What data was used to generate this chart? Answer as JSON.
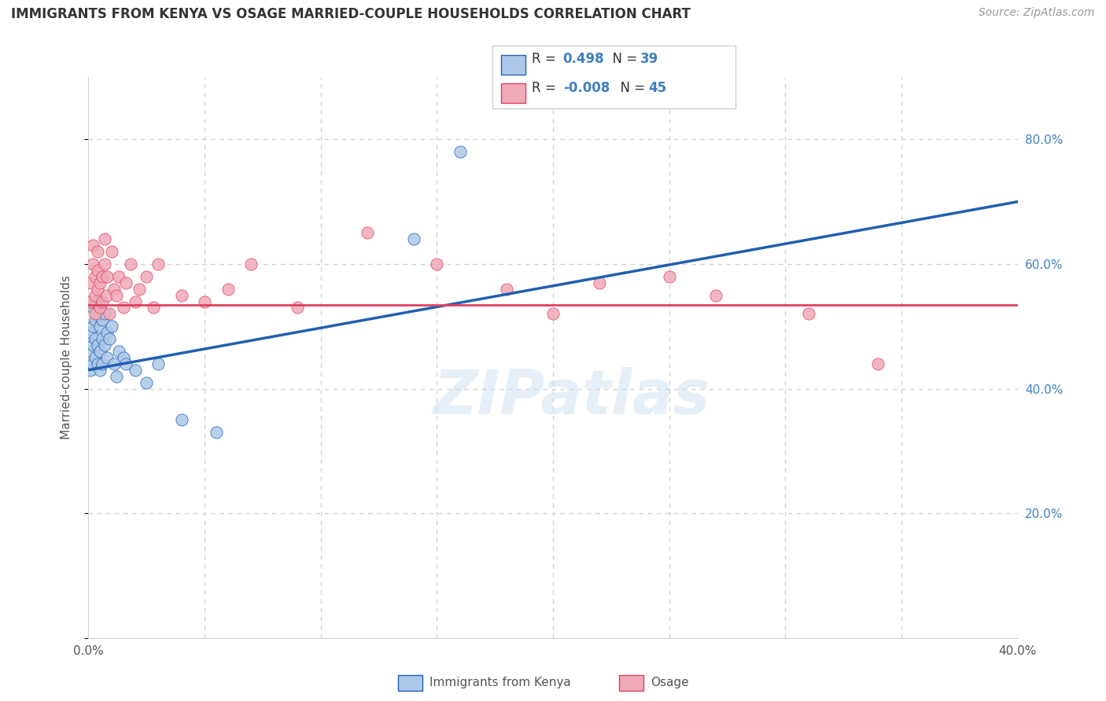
{
  "title": "IMMIGRANTS FROM KENYA VS OSAGE MARRIED-COUPLE HOUSEHOLDS CORRELATION CHART",
  "source": "Source: ZipAtlas.com",
  "ylabel": "Married-couple Households",
  "xlim": [
    0.0,
    0.4
  ],
  "ylim": [
    0.0,
    0.9
  ],
  "yticks": [
    0.0,
    0.2,
    0.4,
    0.6,
    0.8
  ],
  "yticklabels": [
    "",
    "20.0%",
    "40.0%",
    "60.0%",
    "80.0%"
  ],
  "xtick_positions": [
    0.0,
    0.05,
    0.1,
    0.15,
    0.2,
    0.25,
    0.3,
    0.35,
    0.4
  ],
  "xtick_labels": [
    "0.0%",
    "",
    "",
    "",
    "",
    "",
    "",
    "",
    "40.0%"
  ],
  "watermark": "ZIPatlas",
  "color_kenya": "#adc8e8",
  "color_osage": "#f0aab8",
  "color_line_kenya": "#2060b0",
  "color_line_osage": "#e04060",
  "color_line_dashed": "#90b8d8",
  "grid_color": "#d8d0d0",
  "background_color": "#ffffff",
  "kenya_line_x0": 0.0,
  "kenya_line_y0": 0.43,
  "kenya_line_x1": 0.4,
  "kenya_line_y1": 0.7,
  "osage_line_y": 0.535,
  "kenya_x": [
    0.001,
    0.001,
    0.001,
    0.002,
    0.002,
    0.002,
    0.002,
    0.003,
    0.003,
    0.003,
    0.003,
    0.004,
    0.004,
    0.004,
    0.005,
    0.005,
    0.005,
    0.005,
    0.006,
    0.006,
    0.006,
    0.007,
    0.007,
    0.008,
    0.008,
    0.009,
    0.01,
    0.011,
    0.012,
    0.013,
    0.015,
    0.016,
    0.02,
    0.025,
    0.03,
    0.04,
    0.055,
    0.14,
    0.16
  ],
  "kenya_y": [
    0.43,
    0.46,
    0.49,
    0.44,
    0.47,
    0.5,
    0.53,
    0.45,
    0.48,
    0.51,
    0.54,
    0.44,
    0.47,
    0.52,
    0.43,
    0.46,
    0.5,
    0.53,
    0.44,
    0.48,
    0.51,
    0.47,
    0.52,
    0.45,
    0.49,
    0.48,
    0.5,
    0.44,
    0.42,
    0.46,
    0.45,
    0.44,
    0.43,
    0.41,
    0.44,
    0.35,
    0.33,
    0.64,
    0.78
  ],
  "osage_x": [
    0.001,
    0.001,
    0.002,
    0.002,
    0.003,
    0.003,
    0.003,
    0.004,
    0.004,
    0.004,
    0.005,
    0.005,
    0.006,
    0.006,
    0.007,
    0.007,
    0.008,
    0.008,
    0.009,
    0.01,
    0.011,
    0.012,
    0.013,
    0.015,
    0.016,
    0.018,
    0.02,
    0.022,
    0.025,
    0.028,
    0.03,
    0.04,
    0.05,
    0.06,
    0.07,
    0.09,
    0.12,
    0.15,
    0.18,
    0.2,
    0.22,
    0.25,
    0.27,
    0.31,
    0.34
  ],
  "osage_y": [
    0.54,
    0.57,
    0.6,
    0.63,
    0.52,
    0.55,
    0.58,
    0.56,
    0.59,
    0.62,
    0.53,
    0.57,
    0.54,
    0.58,
    0.6,
    0.64,
    0.55,
    0.58,
    0.52,
    0.62,
    0.56,
    0.55,
    0.58,
    0.53,
    0.57,
    0.6,
    0.54,
    0.56,
    0.58,
    0.53,
    0.6,
    0.55,
    0.54,
    0.56,
    0.6,
    0.53,
    0.65,
    0.6,
    0.56,
    0.52,
    0.57,
    0.58,
    0.55,
    0.52,
    0.44
  ]
}
